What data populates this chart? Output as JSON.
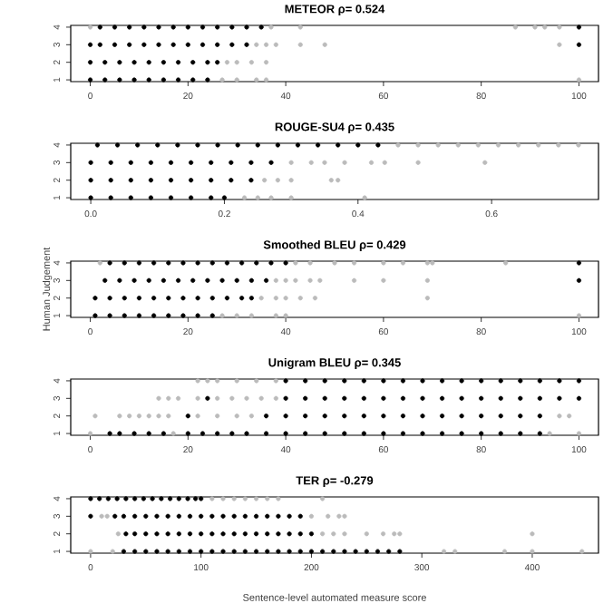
{
  "chart_data": [
    {
      "type": "scatter",
      "title": "METEOR ρ= 0.524",
      "xlim": [
        -4,
        104
      ],
      "xticks": [
        0,
        20,
        40,
        60,
        80,
        100
      ],
      "ylim": [
        0.9,
        4.1
      ],
      "yticks": [
        1,
        2,
        3,
        4
      ],
      "series": [
        {
          "color": "#000000",
          "x": [
            2,
            5,
            8,
            11,
            14,
            17,
            20,
            23,
            26,
            29,
            32,
            35,
            100
          ],
          "values": [
            4,
            4,
            4,
            4,
            4,
            4,
            4,
            4,
            4,
            4,
            4,
            4,
            4
          ]
        },
        {
          "color": "#bbbbbb",
          "x": [
            0,
            37,
            43,
            87,
            91,
            93,
            96
          ],
          "values": [
            4,
            4,
            4,
            4,
            4,
            4,
            4
          ]
        },
        {
          "color": "#000000",
          "x": [
            0,
            2,
            5,
            8,
            11,
            14,
            17,
            20,
            23,
            26,
            29,
            32,
            100
          ],
          "values": [
            3,
            3,
            3,
            3,
            3,
            3,
            3,
            3,
            3,
            3,
            3,
            3,
            3
          ]
        },
        {
          "color": "#bbbbbb",
          "x": [
            34,
            36,
            38,
            43,
            48,
            96
          ],
          "values": [
            3,
            3,
            3,
            3,
            3,
            3
          ]
        },
        {
          "color": "#000000",
          "x": [
            0,
            3,
            6,
            9,
            12,
            15,
            18,
            21,
            24,
            26
          ],
          "values": [
            2,
            2,
            2,
            2,
            2,
            2,
            2,
            2,
            2,
            2
          ]
        },
        {
          "color": "#bbbbbb",
          "x": [
            28,
            30,
            33,
            36
          ],
          "values": [
            2,
            2,
            2,
            2
          ]
        },
        {
          "color": "#000000",
          "x": [
            0,
            3,
            6,
            9,
            12,
            15,
            18,
            21,
            24
          ],
          "values": [
            1,
            1,
            1,
            1,
            1,
            1,
            1,
            1,
            1
          ]
        },
        {
          "color": "#bbbbbb",
          "x": [
            27,
            30,
            34,
            36,
            100
          ],
          "values": [
            1,
            1,
            1,
            1,
            1
          ]
        }
      ]
    },
    {
      "type": "scatter",
      "title": "ROUGE-SU4 ρ= 0.435",
      "xlim": [
        -0.03,
        0.76
      ],
      "xticks": [
        {
          "value": 0,
          "label": "0.0"
        },
        {
          "value": 0.2,
          "label": "0.2"
        },
        {
          "value": 0.4,
          "label": "0.4"
        },
        {
          "value": 0.6,
          "label": "0.6"
        }
      ],
      "ylim": [
        0.9,
        4.1
      ],
      "yticks": [
        1,
        2,
        3,
        4
      ],
      "series": [
        {
          "color": "#000000",
          "x": [
            0.01,
            0.04,
            0.07,
            0.1,
            0.13,
            0.16,
            0.19,
            0.22,
            0.25,
            0.28,
            0.31,
            0.34,
            0.37,
            0.4,
            0.43
          ],
          "values": [
            4,
            4,
            4,
            4,
            4,
            4,
            4,
            4,
            4,
            4,
            4,
            4,
            4,
            4,
            4
          ]
        },
        {
          "color": "#bbbbbb",
          "x": [
            0.46,
            0.49,
            0.52,
            0.55,
            0.58,
            0.61,
            0.64,
            0.67,
            0.7,
            0.73
          ],
          "values": [
            4,
            4,
            4,
            4,
            4,
            4,
            4,
            4,
            4,
            4
          ]
        },
        {
          "color": "#000000",
          "x": [
            0,
            0.03,
            0.06,
            0.09,
            0.12,
            0.15,
            0.18,
            0.21,
            0.24,
            0.27
          ],
          "values": [
            3,
            3,
            3,
            3,
            3,
            3,
            3,
            3,
            3,
            3
          ]
        },
        {
          "color": "#bbbbbb",
          "x": [
            0.3,
            0.33,
            0.35,
            0.38,
            0.42,
            0.44,
            0.49,
            0.59
          ],
          "values": [
            3,
            3,
            3,
            3,
            3,
            3,
            3,
            3
          ]
        },
        {
          "color": "#000000",
          "x": [
            0,
            0.03,
            0.06,
            0.09,
            0.12,
            0.15,
            0.18,
            0.21,
            0.24
          ],
          "values": [
            2,
            2,
            2,
            2,
            2,
            2,
            2,
            2,
            2
          ]
        },
        {
          "color": "#bbbbbb",
          "x": [
            0.26,
            0.28,
            0.3,
            0.36,
            0.37
          ],
          "values": [
            2,
            2,
            2,
            2,
            2
          ]
        },
        {
          "color": "#000000",
          "x": [
            0,
            0.03,
            0.06,
            0.09,
            0.12,
            0.15,
            0.18,
            0.2
          ],
          "values": [
            1,
            1,
            1,
            1,
            1,
            1,
            1,
            1
          ]
        },
        {
          "color": "#bbbbbb",
          "x": [
            0.23,
            0.25,
            0.27,
            0.3,
            0.41
          ],
          "values": [
            1,
            1,
            1,
            1,
            1
          ]
        }
      ]
    },
    {
      "type": "scatter",
      "title": "Smoothed BLEU ρ= 0.429",
      "ylabel": "Human Judgement",
      "xlim": [
        -4,
        104
      ],
      "xticks": [
        0,
        20,
        40,
        60,
        80,
        100
      ],
      "ylim": [
        0.9,
        4.1
      ],
      "yticks": [
        1,
        2,
        3,
        4
      ],
      "series": [
        {
          "color": "#000000",
          "x": [
            4,
            7,
            10,
            13,
            16,
            19,
            22,
            25,
            28,
            31,
            34,
            37,
            40,
            100
          ],
          "values": [
            4,
            4,
            4,
            4,
            4,
            4,
            4,
            4,
            4,
            4,
            4,
            4,
            4,
            4
          ]
        },
        {
          "color": "#bbbbbb",
          "x": [
            2,
            42,
            45,
            50,
            54,
            60,
            64,
            69,
            70,
            85
          ],
          "values": [
            4,
            4,
            4,
            4,
            4,
            4,
            4,
            4,
            4,
            4
          ]
        },
        {
          "color": "#000000",
          "x": [
            3,
            6,
            9,
            12,
            15,
            18,
            21,
            24,
            27,
            30,
            33,
            36,
            100
          ],
          "values": [
            3,
            3,
            3,
            3,
            3,
            3,
            3,
            3,
            3,
            3,
            3,
            3,
            3
          ]
        },
        {
          "color": "#bbbbbb",
          "x": [
            38,
            40,
            42,
            45,
            47,
            54,
            60,
            69
          ],
          "values": [
            3,
            3,
            3,
            3,
            3,
            3,
            3,
            3
          ]
        },
        {
          "color": "#000000",
          "x": [
            1,
            4,
            7,
            10,
            13,
            16,
            19,
            22,
            25,
            28,
            31,
            33
          ],
          "values": [
            2,
            2,
            2,
            2,
            2,
            2,
            2,
            2,
            2,
            2,
            2,
            2
          ]
        },
        {
          "color": "#bbbbbb",
          "x": [
            35,
            38,
            40,
            43,
            46,
            69
          ],
          "values": [
            2,
            2,
            2,
            2,
            2,
            2
          ]
        },
        {
          "color": "#000000",
          "x": [
            1,
            4,
            7,
            10,
            13,
            16,
            19,
            22,
            25
          ],
          "values": [
            1,
            1,
            1,
            1,
            1,
            1,
            1,
            1,
            1
          ]
        },
        {
          "color": "#bbbbbb",
          "x": [
            27,
            30,
            33,
            38,
            40,
            100
          ],
          "values": [
            1,
            1,
            1,
            1,
            1,
            1
          ]
        }
      ]
    },
    {
      "type": "scatter",
      "title": "Unigram BLEU ρ= 0.345",
      "xlim": [
        -4,
        104
      ],
      "xticks": [
        0,
        20,
        40,
        60,
        80,
        100
      ],
      "ylim": [
        0.9,
        4.1
      ],
      "yticks": [
        1,
        2,
        3,
        4
      ],
      "series": [
        {
          "color": "#000000",
          "x": [
            40,
            44,
            48,
            52,
            56,
            60,
            64,
            68,
            72,
            76,
            80,
            84,
            88,
            92,
            96,
            100
          ],
          "values": [
            4,
            4,
            4,
            4,
            4,
            4,
            4,
            4,
            4,
            4,
            4,
            4,
            4,
            4,
            4,
            4
          ]
        },
        {
          "color": "#bbbbbb",
          "x": [
            22,
            24,
            26,
            30,
            34,
            38
          ],
          "values": [
            4,
            4,
            4,
            4,
            4,
            4
          ]
        },
        {
          "color": "#000000",
          "x": [
            24,
            40,
            44,
            48,
            52,
            56,
            60,
            64,
            68,
            72,
            76,
            80,
            84,
            88,
            92,
            96,
            100
          ],
          "values": [
            3,
            3,
            3,
            3,
            3,
            3,
            3,
            3,
            3,
            3,
            3,
            3,
            3,
            3,
            3,
            3,
            3
          ]
        },
        {
          "color": "#bbbbbb",
          "x": [
            14,
            16,
            18,
            22,
            26,
            29,
            32,
            35,
            38
          ],
          "values": [
            3,
            3,
            3,
            3,
            3,
            3,
            3,
            3,
            3
          ]
        },
        {
          "color": "#000000",
          "x": [
            20,
            36,
            40,
            44,
            48,
            52,
            56,
            60,
            64,
            68,
            72,
            76,
            80,
            84,
            88,
            92
          ],
          "values": [
            2,
            2,
            2,
            2,
            2,
            2,
            2,
            2,
            2,
            2,
            2,
            2,
            2,
            2,
            2,
            2
          ]
        },
        {
          "color": "#bbbbbb",
          "x": [
            1,
            6,
            8,
            10,
            12,
            14,
            16,
            22,
            26,
            30,
            33,
            96,
            98
          ],
          "values": [
            2,
            2,
            2,
            2,
            2,
            2,
            2,
            2,
            2,
            2,
            2,
            2,
            2
          ]
        },
        {
          "color": "#000000",
          "x": [
            4,
            6,
            9,
            12,
            15,
            20,
            23,
            26,
            29,
            32,
            36,
            40,
            44,
            48,
            52,
            56,
            60,
            64,
            68,
            72,
            76,
            80,
            84,
            88,
            92
          ],
          "values": [
            1,
            1,
            1,
            1,
            1,
            1,
            1,
            1,
            1,
            1,
            1,
            1,
            1,
            1,
            1,
            1,
            1,
            1,
            1,
            1,
            1,
            1,
            1,
            1,
            1
          ]
        },
        {
          "color": "#bbbbbb",
          "x": [
            0,
            17,
            94,
            100
          ],
          "values": [
            1,
            1,
            1,
            1
          ]
        }
      ]
    },
    {
      "type": "scatter",
      "title": "TER ρ= -0.279",
      "xlabel": "Sentence-level automated measure score",
      "xlim": [
        -18,
        460
      ],
      "xticks": [
        0,
        100,
        200,
        300,
        400
      ],
      "ylim": [
        0.9,
        4.1
      ],
      "yticks": [
        1,
        2,
        3,
        4
      ],
      "series": [
        {
          "color": "#000000",
          "x": [
            0,
            8,
            16,
            24,
            32,
            40,
            48,
            56,
            64,
            72,
            80,
            88,
            95,
            100
          ],
          "values": [
            4,
            4,
            4,
            4,
            4,
            4,
            4,
            4,
            4,
            4,
            4,
            4,
            4,
            4
          ]
        },
        {
          "color": "#bbbbbb",
          "x": [
            110,
            120,
            130,
            140,
            150,
            160,
            170,
            210
          ],
          "values": [
            4,
            4,
            4,
            4,
            4,
            4,
            4,
            4
          ]
        },
        {
          "color": "#000000",
          "x": [
            0,
            22,
            30,
            40,
            50,
            60,
            70,
            80,
            90,
            100,
            110,
            120,
            130,
            140,
            150,
            160,
            170,
            180,
            190
          ],
          "values": [
            3,
            3,
            3,
            3,
            3,
            3,
            3,
            3,
            3,
            3,
            3,
            3,
            3,
            3,
            3,
            3,
            3,
            3,
            3
          ]
        },
        {
          "color": "#bbbbbb",
          "x": [
            10,
            15,
            200,
            215,
            225,
            230
          ],
          "values": [
            3,
            3,
            3,
            3,
            3,
            3
          ]
        },
        {
          "color": "#000000",
          "x": [
            32,
            40,
            50,
            60,
            70,
            80,
            90,
            100,
            110,
            120,
            130,
            140,
            150,
            160,
            170,
            180,
            190,
            200
          ],
          "values": [
            2,
            2,
            2,
            2,
            2,
            2,
            2,
            2,
            2,
            2,
            2,
            2,
            2,
            2,
            2,
            2,
            2,
            2
          ]
        },
        {
          "color": "#bbbbbb",
          "x": [
            25,
            210,
            220,
            230,
            250,
            265,
            275,
            280,
            400
          ],
          "values": [
            2,
            2,
            2,
            2,
            2,
            2,
            2,
            2,
            2
          ]
        },
        {
          "color": "#000000",
          "x": [
            30,
            40,
            50,
            60,
            70,
            80,
            90,
            100,
            110,
            120,
            130,
            140,
            150,
            160,
            170,
            180,
            190,
            200,
            210,
            220,
            230,
            240,
            250,
            260,
            270,
            280
          ],
          "values": [
            1,
            1,
            1,
            1,
            1,
            1,
            1,
            1,
            1,
            1,
            1,
            1,
            1,
            1,
            1,
            1,
            1,
            1,
            1,
            1,
            1,
            1,
            1,
            1,
            1,
            1
          ]
        },
        {
          "color": "#bbbbbb",
          "x": [
            0,
            20,
            320,
            330,
            375,
            400,
            445
          ],
          "values": [
            1,
            1,
            1,
            1,
            1,
            1,
            1
          ]
        }
      ]
    }
  ]
}
